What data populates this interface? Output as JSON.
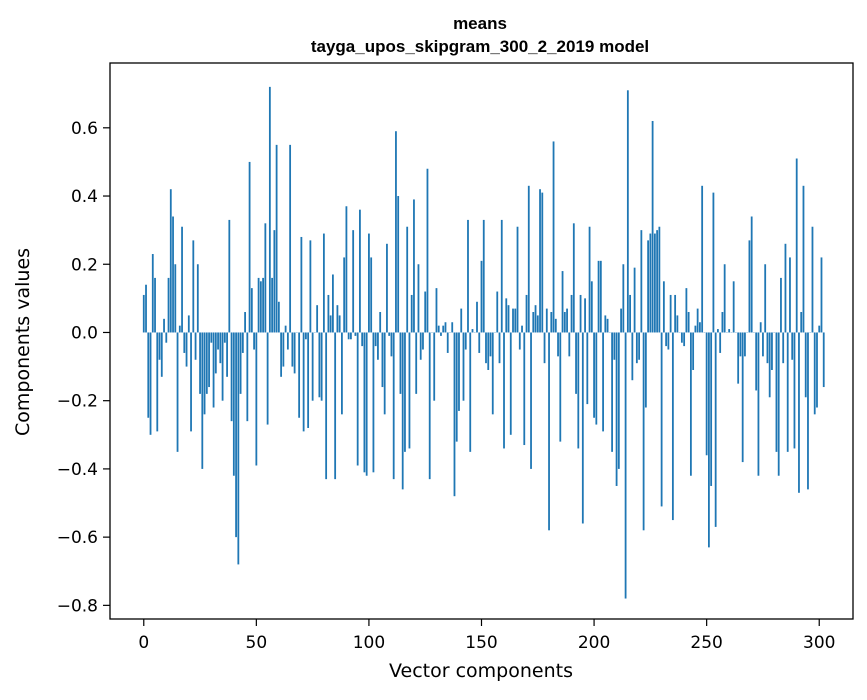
{
  "chart_data": {
    "type": "bar",
    "title": "means",
    "subtitle": "tayga_upos_skipgram_300_2_2019 model",
    "xlabel": "Vector components",
    "ylabel": "Components values",
    "xlim": [
      -15,
      315
    ],
    "ylim": [
      -0.84,
      0.79
    ],
    "xticks": [
      0,
      50,
      100,
      150,
      200,
      250,
      300
    ],
    "xtick_labels": [
      "0",
      "50",
      "100",
      "150",
      "200",
      "250",
      "300"
    ],
    "yticks": [
      0.6,
      0.4,
      0.2,
      0.0,
      -0.2,
      -0.4,
      -0.6,
      -0.8
    ],
    "ytick_labels": [
      "0.6",
      "0.4",
      "0.2",
      "0.0",
      "−0.2",
      "−0.4",
      "−0.6",
      "−0.8"
    ],
    "grid": false,
    "bar_color": "#1f77b4",
    "series": [
      {
        "values": [
          0.11,
          0.14,
          -0.25,
          -0.3,
          0.23,
          0.16,
          -0.29,
          -0.08,
          -0.13,
          0.04,
          -0.03,
          0.16,
          0.42,
          0.34,
          0.2,
          -0.35,
          0.02,
          0.31,
          -0.06,
          -0.1,
          0.05,
          -0.29,
          0.27,
          -0.08,
          0.2,
          -0.18,
          -0.4,
          -0.24,
          -0.18,
          -0.16,
          -0.03,
          -0.22,
          -0.12,
          -0.05,
          -0.09,
          -0.2,
          -0.03,
          -0.13,
          0.33,
          -0.26,
          -0.42,
          -0.6,
          -0.68,
          -0.18,
          -0.06,
          0.06,
          -0.26,
          0.5,
          0.13,
          -0.05,
          -0.39,
          0.16,
          0.15,
          0.16,
          0.32,
          -0.27,
          0.72,
          0.16,
          0.3,
          0.55,
          0.09,
          -0.13,
          -0.1,
          0.02,
          -0.05,
          0.55,
          -0.1,
          -0.12,
          0.0,
          -0.25,
          0.28,
          -0.29,
          -0.02,
          -0.28,
          0.27,
          -0.2,
          0.0,
          0.08,
          -0.19,
          -0.2,
          0.29,
          -0.43,
          0.11,
          0.05,
          0.17,
          -0.43,
          0.08,
          0.05,
          -0.24,
          0.22,
          0.37,
          -0.02,
          -0.02,
          0.3,
          -0.01,
          -0.39,
          0.36,
          -0.04,
          -0.41,
          -0.42,
          0.29,
          0.22,
          -0.41,
          -0.04,
          -0.08,
          0.06,
          -0.16,
          -0.24,
          0.26,
          -0.01,
          -0.07,
          -0.43,
          0.59,
          0.4,
          -0.18,
          -0.46,
          -0.35,
          0.31,
          -0.34,
          0.11,
          0.39,
          -0.18,
          0.2,
          -0.08,
          -0.05,
          0.12,
          0.48,
          -0.43,
          0.0,
          -0.2,
          0.13,
          0.02,
          -0.01,
          0.02,
          0.03,
          -0.06,
          0.0,
          0.03,
          -0.48,
          -0.32,
          -0.23,
          0.07,
          -0.2,
          -0.05,
          0.33,
          -0.35,
          0.01,
          0.0,
          0.09,
          -0.06,
          0.21,
          0.33,
          -0.09,
          -0.11,
          -0.07,
          -0.24,
          0.0,
          0.12,
          -0.09,
          0.33,
          -0.34,
          0.1,
          0.08,
          -0.3,
          0.07,
          0.07,
          0.31,
          -0.05,
          0.02,
          -0.33,
          0.11,
          0.43,
          -0.4,
          0.06,
          0.08,
          0.05,
          0.42,
          0.41,
          -0.09,
          0.07,
          -0.58,
          0.06,
          0.56,
          0.04,
          -0.07,
          -0.32,
          0.18,
          0.06,
          0.07,
          -0.07,
          0.11,
          0.32,
          -0.18,
          -0.34,
          0.11,
          -0.56,
          0.1,
          -0.21,
          0.31,
          0.15,
          -0.25,
          -0.27,
          0.21,
          0.21,
          -0.29,
          0.05,
          0.04,
          0.0,
          -0.35,
          -0.08,
          -0.45,
          -0.4,
          0.07,
          0.2,
          -0.78,
          0.71,
          0.11,
          -0.14,
          0.19,
          -0.09,
          -0.08,
          0.3,
          -0.58,
          -0.22,
          0.27,
          0.29,
          0.62,
          0.29,
          0.3,
          0.31,
          -0.51,
          0.15,
          -0.04,
          -0.05,
          0.11,
          -0.55,
          0.11,
          0.05,
          0.0,
          -0.03,
          -0.04,
          0.13,
          0.06,
          -0.42,
          -0.11,
          0.02,
          0.07,
          0.03,
          0.43,
          0.0,
          -0.36,
          -0.63,
          -0.45,
          0.41,
          -0.57,
          0.01,
          -0.06,
          0.06,
          0.2,
          0.0,
          0.01,
          0.0,
          0.15,
          0.0,
          -0.15,
          -0.07,
          -0.38,
          -0.07,
          0.0,
          0.27,
          0.34,
          0.0,
          -0.17,
          -0.42,
          0.03,
          -0.07,
          0.2,
          -0.09,
          -0.19,
          -0.11,
          0.0,
          -0.35,
          -0.42,
          0.16,
          -0.09,
          0.26,
          -0.35,
          0.22,
          -0.08,
          -0.34,
          0.51,
          -0.47,
          0.06,
          0.43,
          -0.19,
          -0.46,
          0.0,
          0.31,
          -0.24,
          -0.22,
          0.02,
          0.22,
          -0.16
        ]
      }
    ]
  }
}
